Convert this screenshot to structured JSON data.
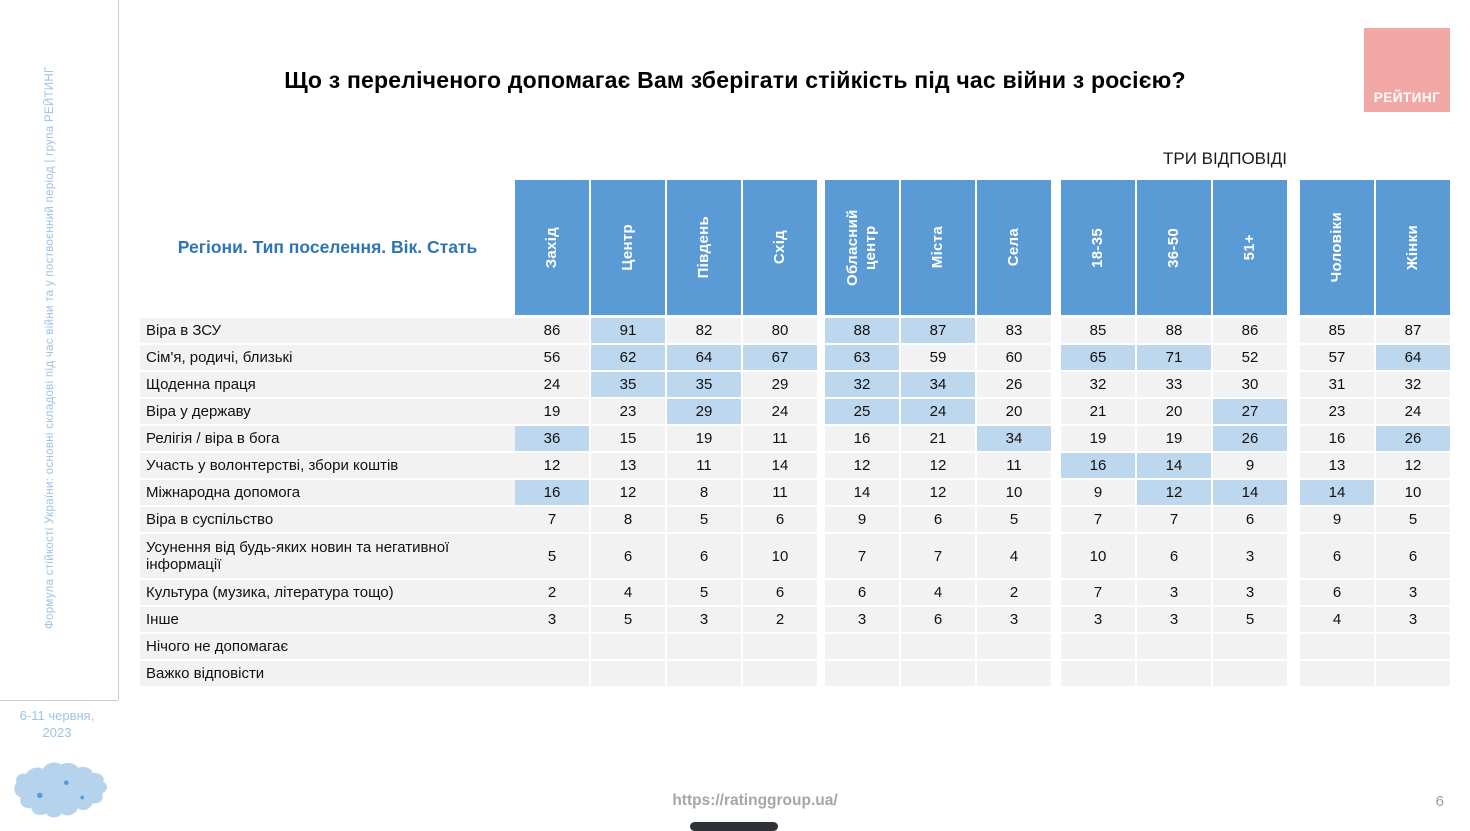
{
  "sidebar": {
    "vertical_text": "Формула стійкості України: основні складові під час війни та у поствоєнний період | група РЕЙТИНГ",
    "date_line1": "6-11 червня,",
    "date_line2": "2023"
  },
  "header": {
    "title": "Що з переліченого допомагає Вам зберігати стійкість під час війни з росією?",
    "logo_text": "РЕЙТИНГ",
    "answers_note": "ТРИ ВІДПОВІДІ"
  },
  "table": {
    "corner_label": "Регіони. Тип поселення. Вік. Стать"
  },
  "footer": {
    "url": "https://ratinggroup.ua/",
    "page_number": "6"
  },
  "colors": {
    "header_blue": "#5B9BD5",
    "highlight_blue": "#BDD7EE",
    "row_stripe": "#F2F2F2",
    "logo_pink": "#F2A9A5",
    "sidebar_blue": "#9DC3E6",
    "corner_label_blue": "#2E75B6",
    "footer_gray": "#A6A6A6",
    "page_number_color": "#8DA3B8"
  },
  "chart_data": {
    "type": "table",
    "title": "Що з переліченого допомагає Вам зберігати стійкість під час війни з росією?",
    "note": "ТРИ ВІДПОВІДІ",
    "column_groups": [
      {
        "name": "Регіони",
        "columns": [
          "Захід",
          "Центр",
          "Південь",
          "Схід"
        ]
      },
      {
        "name": "Тип поселення",
        "columns": [
          "Обласний центр",
          "Міста",
          "Села"
        ]
      },
      {
        "name": "Вік",
        "columns": [
          "18-35",
          "36-50",
          "51+"
        ]
      },
      {
        "name": "Стать",
        "columns": [
          "Чоловіки",
          "Жінки"
        ]
      }
    ],
    "rows": [
      {
        "label": "Віра в ЗСУ",
        "values": [
          [
            86,
            91,
            82,
            80
          ],
          [
            88,
            87,
            83
          ],
          [
            85,
            88,
            86
          ],
          [
            85,
            87
          ]
        ],
        "highlighted": [
          [
            0,
            1,
            0,
            0
          ],
          [
            1,
            1,
            0
          ],
          [
            0,
            0,
            0
          ],
          [
            0,
            0
          ]
        ]
      },
      {
        "label": "Сім'я, родичі, близькі",
        "values": [
          [
            56,
            62,
            64,
            67
          ],
          [
            63,
            59,
            60
          ],
          [
            65,
            71,
            52
          ],
          [
            57,
            64
          ]
        ],
        "highlighted": [
          [
            0,
            1,
            1,
            1
          ],
          [
            1,
            0,
            0
          ],
          [
            1,
            1,
            0
          ],
          [
            0,
            1
          ]
        ]
      },
      {
        "label": "Щоденна праця",
        "values": [
          [
            24,
            35,
            35,
            29
          ],
          [
            32,
            34,
            26
          ],
          [
            32,
            33,
            30
          ],
          [
            31,
            32
          ]
        ],
        "highlighted": [
          [
            0,
            1,
            1,
            0
          ],
          [
            1,
            1,
            0
          ],
          [
            0,
            0,
            0
          ],
          [
            0,
            0
          ]
        ]
      },
      {
        "label": "Віра у державу",
        "values": [
          [
            19,
            23,
            29,
            24
          ],
          [
            25,
            24,
            20
          ],
          [
            21,
            20,
            27
          ],
          [
            23,
            24
          ]
        ],
        "highlighted": [
          [
            0,
            0,
            1,
            0
          ],
          [
            1,
            1,
            0
          ],
          [
            0,
            0,
            1
          ],
          [
            0,
            0
          ]
        ]
      },
      {
        "label": "Релігія / віра в бога",
        "values": [
          [
            36,
            15,
            19,
            11
          ],
          [
            16,
            21,
            34
          ],
          [
            19,
            19,
            26
          ],
          [
            16,
            26
          ]
        ],
        "highlighted": [
          [
            1,
            0,
            0,
            0
          ],
          [
            0,
            0,
            1
          ],
          [
            0,
            0,
            1
          ],
          [
            0,
            1
          ]
        ]
      },
      {
        "label": "Участь у волонтерстві, збори коштів",
        "values": [
          [
            12,
            13,
            11,
            14
          ],
          [
            12,
            12,
            11
          ],
          [
            16,
            14,
            9
          ],
          [
            13,
            12
          ]
        ],
        "highlighted": [
          [
            0,
            0,
            0,
            0
          ],
          [
            0,
            0,
            0
          ],
          [
            1,
            1,
            0
          ],
          [
            0,
            0
          ]
        ]
      },
      {
        "label": "Міжнародна допомога",
        "values": [
          [
            16,
            12,
            8,
            11
          ],
          [
            14,
            12,
            10
          ],
          [
            9,
            12,
            14
          ],
          [
            14,
            10
          ]
        ],
        "highlighted": [
          [
            1,
            0,
            0,
            0
          ],
          [
            0,
            0,
            0
          ],
          [
            0,
            1,
            1
          ],
          [
            1,
            0
          ]
        ]
      },
      {
        "label": "Віра в суспільство",
        "values": [
          [
            7,
            8,
            5,
            6
          ],
          [
            9,
            6,
            5
          ],
          [
            7,
            7,
            6
          ],
          [
            9,
            5
          ]
        ],
        "highlighted": [
          [
            0,
            0,
            0,
            0
          ],
          [
            0,
            0,
            0
          ],
          [
            0,
            0,
            0
          ],
          [
            0,
            0
          ]
        ]
      },
      {
        "label": "Усунення від будь-яких новин та негативної інформації",
        "values": [
          [
            5,
            6,
            6,
            10
          ],
          [
            7,
            7,
            4
          ],
          [
            10,
            6,
            3
          ],
          [
            6,
            6
          ]
        ],
        "highlighted": [
          [
            0,
            0,
            0,
            0
          ],
          [
            0,
            0,
            0
          ],
          [
            0,
            0,
            0
          ],
          [
            0,
            0
          ]
        ],
        "tall": true
      },
      {
        "label": "Культура (музика, література тощо)",
        "values": [
          [
            2,
            4,
            5,
            6
          ],
          [
            6,
            4,
            2
          ],
          [
            7,
            3,
            3
          ],
          [
            6,
            3
          ]
        ],
        "highlighted": [
          [
            0,
            0,
            0,
            0
          ],
          [
            0,
            0,
            0
          ],
          [
            0,
            0,
            0
          ],
          [
            0,
            0
          ]
        ]
      },
      {
        "label": "Інше",
        "values": [
          [
            3,
            5,
            3,
            2
          ],
          [
            3,
            6,
            3
          ],
          [
            3,
            3,
            5
          ],
          [
            4,
            3
          ]
        ],
        "highlighted": [
          [
            0,
            0,
            0,
            0
          ],
          [
            0,
            0,
            0
          ],
          [
            0,
            0,
            0
          ],
          [
            0,
            0
          ]
        ]
      },
      {
        "label": "Нічого не допомагає",
        "values": [
          [
            "",
            "",
            "",
            ""
          ],
          [
            "",
            "",
            ""
          ],
          [
            "",
            "",
            ""
          ],
          [
            "",
            ""
          ]
        ],
        "highlighted": [
          [
            0,
            0,
            0,
            0
          ],
          [
            0,
            0,
            0
          ],
          [
            0,
            0,
            0
          ],
          [
            0,
            0
          ]
        ]
      },
      {
        "label": "Важко відповісти",
        "values": [
          [
            "",
            "",
            "",
            ""
          ],
          [
            "",
            "",
            ""
          ],
          [
            "",
            "",
            ""
          ],
          [
            "",
            ""
          ]
        ],
        "highlighted": [
          [
            0,
            0,
            0,
            0
          ],
          [
            0,
            0,
            0
          ],
          [
            0,
            0,
            0
          ],
          [
            0,
            0
          ]
        ]
      }
    ]
  }
}
